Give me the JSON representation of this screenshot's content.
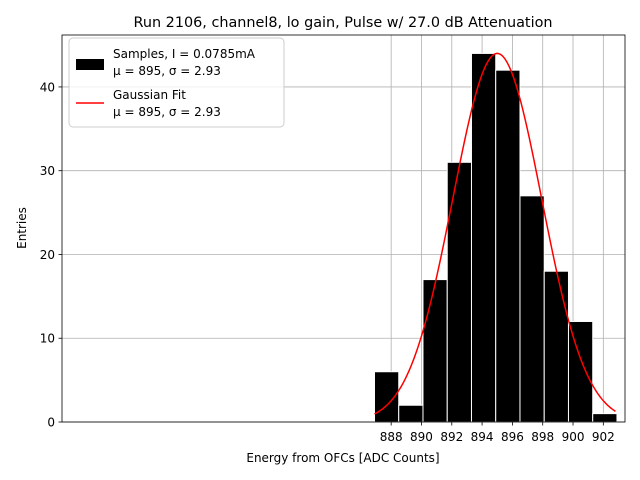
{
  "chart_data": {
    "type": "bar",
    "title": "Run 2106, channel8, lo gain, Pulse w/ 27.0 dB Attenuation",
    "xlabel": "Energy from OFCs [ADC Counts]",
    "ylabel": "Entries",
    "xlim": [
      866.28,
      903.43
    ],
    "ylim": [
      0,
      46.2
    ],
    "xticks": [
      888,
      890,
      892,
      894,
      896,
      898,
      900,
      902
    ],
    "yticks": [
      0,
      10,
      20,
      30,
      40
    ],
    "grid": true,
    "legend_position": "top-left",
    "histogram": {
      "name": "Samples",
      "legend_line1": "Samples, I = 0.0785mA",
      "legend_line2": "μ = 895, σ = 2.93",
      "color": "#000000",
      "bin_edges": [
        886.9,
        888.5,
        890.1,
        891.7,
        893.3,
        894.9,
        896.5,
        898.1,
        899.7,
        901.3,
        902.9
      ],
      "counts": [
        6,
        2,
        17,
        31,
        44,
        42,
        27,
        18,
        12,
        1
      ]
    },
    "fit": {
      "name": "Gaussian Fit",
      "legend_line1": "Gaussian Fit",
      "legend_line2": "μ = 895, σ = 2.93",
      "color": "#ff0000",
      "mu": 895,
      "sigma": 2.93,
      "amplitude": 44.0,
      "x_range": [
        886.9,
        902.8
      ]
    }
  }
}
